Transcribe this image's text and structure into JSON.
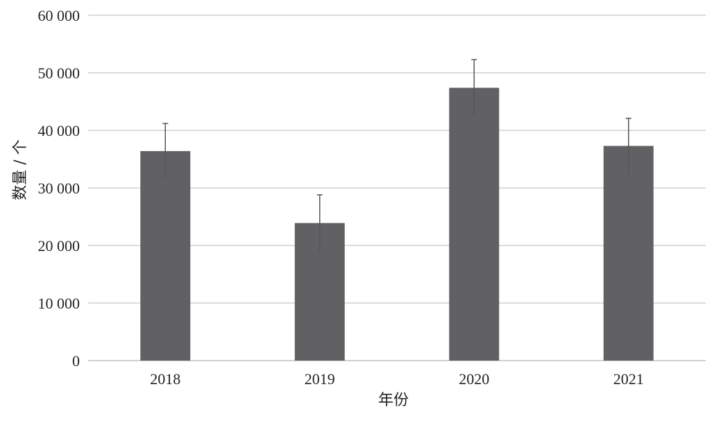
{
  "chart_data": {
    "type": "bar",
    "categories": [
      "2018",
      "2019",
      "2020",
      "2021"
    ],
    "values": [
      36400,
      23900,
      47400,
      37300
    ],
    "error_high": [
      41200,
      28800,
      52300,
      42100
    ],
    "error_low": [
      31600,
      19000,
      42600,
      32400
    ],
    "xlabel": "年份",
    "ylabel": "数量 / 个",
    "ylim": [
      0,
      60000
    ],
    "yticks": [
      {
        "value": 0,
        "label": "0"
      },
      {
        "value": 10000,
        "label": "10 000"
      },
      {
        "value": 20000,
        "label": "20 000"
      },
      {
        "value": 30000,
        "label": "30 000"
      },
      {
        "value": 40000,
        "label": "40 000"
      },
      {
        "value": 50000,
        "label": "50 000"
      },
      {
        "value": 60000,
        "label": "60 000"
      }
    ],
    "grid": true,
    "bar_color": "#616164",
    "error_color": "#555555",
    "grid_color": "#d0d0d0"
  }
}
